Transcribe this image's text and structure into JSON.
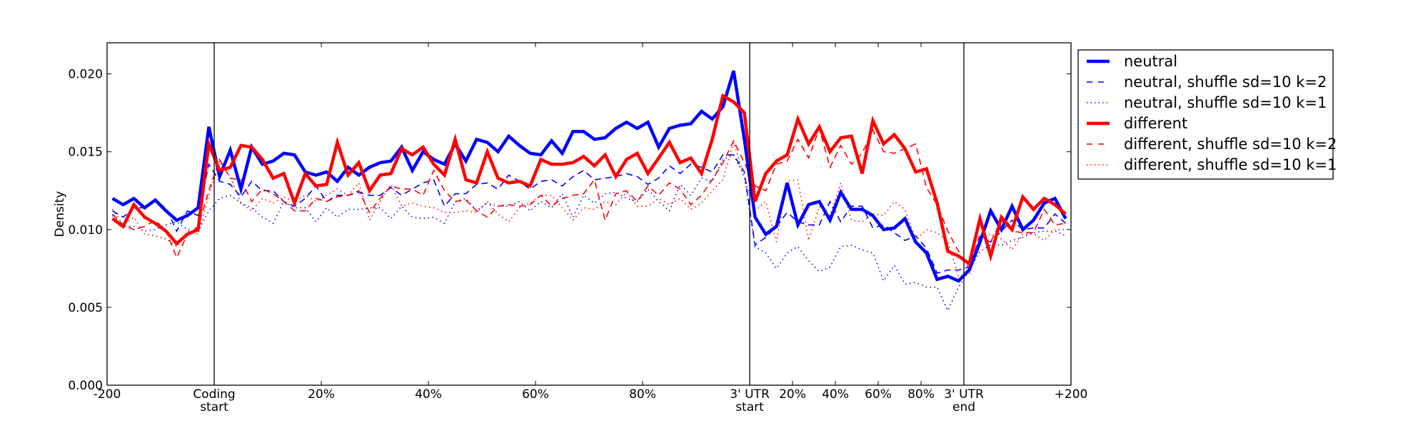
{
  "chart_data": {
    "type": "line",
    "title": "",
    "xlabel": "",
    "ylabel": "Density",
    "ylim": [
      0,
      0.022
    ],
    "xlim": [
      0,
      90
    ],
    "n_bins": 90,
    "x_note": "bin index; segments: upstream -200..0 (bins 0-10), coding 0-100% (10-60), 3' UTR 0-100% (60-80), downstream 0..+200 (80-90)",
    "grid": false,
    "legend_position": "outside-right-top",
    "yticks": [
      {
        "value": 0.0,
        "label": "0.000"
      },
      {
        "value": 0.005,
        "label": "0.005"
      },
      {
        "value": 0.01,
        "label": "0.010"
      },
      {
        "value": 0.015,
        "label": "0.015"
      },
      {
        "value": 0.02,
        "label": "0.020"
      }
    ],
    "xticks": [
      {
        "value": 0,
        "label": [
          "-200"
        ]
      },
      {
        "value": 10,
        "label": [
          "Coding",
          "start"
        ]
      },
      {
        "value": 20,
        "label": [
          "20%"
        ]
      },
      {
        "value": 30,
        "label": [
          "40%"
        ]
      },
      {
        "value": 40,
        "label": [
          "60%"
        ]
      },
      {
        "value": 50,
        "label": [
          "80%"
        ]
      },
      {
        "value": 60,
        "label": [
          "3' UTR",
          "start"
        ]
      },
      {
        "value": 64,
        "label": [
          "20%"
        ]
      },
      {
        "value": 68,
        "label": [
          "40%"
        ]
      },
      {
        "value": 72,
        "label": [
          "60%"
        ]
      },
      {
        "value": 76,
        "label": [
          "80%"
        ]
      },
      {
        "value": 80,
        "label": [
          "3' UTR",
          "end"
        ]
      },
      {
        "value": 90,
        "label": [
          "+200"
        ]
      }
    ],
    "vlines": [
      10,
      60,
      80
    ],
    "series": [
      {
        "name": "neutral",
        "color": "#0000ff",
        "style": "solid",
        "values": [
          0.012,
          0.0116,
          0.012,
          0.0114,
          0.0119,
          0.0112,
          0.0106,
          0.0109,
          0.0114,
          0.0166,
          0.0134,
          0.0151,
          0.0126,
          0.0153,
          0.0142,
          0.0144,
          0.0149,
          0.0148,
          0.0137,
          0.0135,
          0.0137,
          0.0131,
          0.014,
          0.0135,
          0.014,
          0.0143,
          0.0144,
          0.0153,
          0.0138,
          0.015,
          0.0145,
          0.0142,
          0.0155,
          0.0144,
          0.0158,
          0.0156,
          0.015,
          0.016,
          0.0154,
          0.0149,
          0.0148,
          0.0157,
          0.0149,
          0.0163,
          0.0163,
          0.0158,
          0.0159,
          0.0165,
          0.0169,
          0.0165,
          0.0169,
          0.0153,
          0.0165,
          0.0167,
          0.0168,
          0.0176,
          0.0171,
          0.0179,
          0.0202,
          0.0158,
          0.0108,
          0.0097,
          0.0102,
          0.013,
          0.0103,
          0.0116,
          0.0118,
          0.0106,
          0.0124,
          0.0113,
          0.0113,
          0.0109,
          0.01,
          0.0101,
          0.0107,
          0.0092,
          0.0085,
          0.0068,
          0.007,
          0.0067,
          0.0074,
          0.0092,
          0.0112,
          0.01,
          0.0115,
          0.01,
          0.0106,
          0.0117,
          0.012,
          0.0107
        ]
      },
      {
        "name": "neutral, shuffle sd=10 k=2",
        "color": "#0000ff",
        "style": "dashed",
        "values": [
          0.0112,
          0.0108,
          0.0114,
          0.0114,
          0.0118,
          0.0114,
          0.0099,
          0.0112,
          0.0109,
          0.0142,
          0.0131,
          0.0129,
          0.0121,
          0.0131,
          0.0125,
          0.0125,
          0.0118,
          0.0115,
          0.012,
          0.0128,
          0.0118,
          0.0122,
          0.0122,
          0.0124,
          0.0122,
          0.0122,
          0.0127,
          0.0122,
          0.0126,
          0.013,
          0.0132,
          0.0115,
          0.0123,
          0.0123,
          0.0129,
          0.013,
          0.0126,
          0.0135,
          0.0131,
          0.0126,
          0.0131,
          0.0132,
          0.0128,
          0.0134,
          0.0138,
          0.0132,
          0.0133,
          0.0134,
          0.0136,
          0.0134,
          0.0129,
          0.0133,
          0.0141,
          0.0136,
          0.0142,
          0.014,
          0.0137,
          0.0148,
          0.0148,
          0.0137,
          0.009,
          0.0095,
          0.0102,
          0.0111,
          0.0105,
          0.0103,
          0.0103,
          0.0118,
          0.0105,
          0.0115,
          0.0115,
          0.0101,
          0.0103,
          0.0098,
          0.0093,
          0.0096,
          0.0088,
          0.0072,
          0.0074,
          0.0074,
          0.0076,
          0.0095,
          0.0092,
          0.0099,
          0.0106,
          0.01,
          0.0101,
          0.0101,
          0.011,
          0.0104
        ]
      },
      {
        "name": "neutral, shuffle sd=10 k=1",
        "color": "#0000ff",
        "style": "dotted",
        "values": [
          0.0109,
          0.0102,
          0.0102,
          0.0099,
          0.01,
          0.0103,
          0.0105,
          0.01,
          0.0099,
          0.0112,
          0.012,
          0.0122,
          0.0117,
          0.0114,
          0.0108,
          0.0104,
          0.0118,
          0.0114,
          0.0114,
          0.0105,
          0.0114,
          0.0108,
          0.0113,
          0.0113,
          0.0114,
          0.0114,
          0.0107,
          0.0115,
          0.0108,
          0.0107,
          0.0108,
          0.0104,
          0.0118,
          0.012,
          0.0112,
          0.0117,
          0.0115,
          0.0115,
          0.0118,
          0.0112,
          0.0118,
          0.0114,
          0.0123,
          0.0108,
          0.0122,
          0.0117,
          0.0123,
          0.0124,
          0.012,
          0.0118,
          0.0126,
          0.0118,
          0.0112,
          0.0129,
          0.0122,
          0.0133,
          0.0131,
          0.0145,
          0.0148,
          0.0134,
          0.0089,
          0.0085,
          0.0075,
          0.0085,
          0.0089,
          0.008,
          0.0073,
          0.0076,
          0.0089,
          0.009,
          0.0087,
          0.0085,
          0.0067,
          0.0077,
          0.0065,
          0.0066,
          0.0063,
          0.0063,
          0.0048,
          0.0063,
          0.0074,
          0.0086,
          0.009,
          0.009,
          0.0093,
          0.0095,
          0.0098,
          0.0099,
          0.0099,
          0.0096
        ]
      },
      {
        "name": "different",
        "color": "#ff0000",
        "style": "solid",
        "values": [
          0.0107,
          0.0102,
          0.0116,
          0.0108,
          0.0104,
          0.0099,
          0.0091,
          0.0097,
          0.01,
          0.0155,
          0.0138,
          0.014,
          0.0154,
          0.0153,
          0.0145,
          0.0133,
          0.0136,
          0.0117,
          0.0136,
          0.0128,
          0.0129,
          0.0156,
          0.0135,
          0.0143,
          0.0125,
          0.0135,
          0.0136,
          0.0152,
          0.0148,
          0.0153,
          0.0142,
          0.0135,
          0.0158,
          0.0132,
          0.013,
          0.015,
          0.0133,
          0.013,
          0.0131,
          0.0128,
          0.0145,
          0.0142,
          0.0142,
          0.0143,
          0.0147,
          0.0141,
          0.0148,
          0.0134,
          0.0145,
          0.0149,
          0.0136,
          0.0146,
          0.0156,
          0.0143,
          0.0146,
          0.0136,
          0.0158,
          0.0186,
          0.0182,
          0.0175,
          0.0118,
          0.0136,
          0.0144,
          0.0148,
          0.0171,
          0.0155,
          0.0166,
          0.015,
          0.0159,
          0.016,
          0.0136,
          0.017,
          0.0155,
          0.0161,
          0.0152,
          0.0137,
          0.0139,
          0.0117,
          0.0086,
          0.0083,
          0.0078,
          0.0107,
          0.0083,
          0.0108,
          0.01,
          0.0121,
          0.0113,
          0.012,
          0.0116,
          0.011
        ]
      },
      {
        "name": "different, shuffle sd=10 k=2",
        "color": "#ff0000",
        "style": "dashed",
        "values": [
          0.011,
          0.0103,
          0.01,
          0.0102,
          0.0106,
          0.0099,
          0.0082,
          0.0097,
          0.0102,
          0.0125,
          0.0145,
          0.0133,
          0.0132,
          0.0118,
          0.0126,
          0.0123,
          0.0118,
          0.0112,
          0.0112,
          0.012,
          0.0118,
          0.0121,
          0.0122,
          0.0125,
          0.0111,
          0.012,
          0.0128,
          0.0126,
          0.0126,
          0.0122,
          0.0138,
          0.0125,
          0.0118,
          0.0119,
          0.0112,
          0.0108,
          0.0115,
          0.0116,
          0.0115,
          0.0116,
          0.0122,
          0.0115,
          0.012,
          0.0122,
          0.0123,
          0.0132,
          0.0106,
          0.0123,
          0.0125,
          0.0118,
          0.0128,
          0.0122,
          0.013,
          0.0126,
          0.0116,
          0.0122,
          0.0132,
          0.0143,
          0.0157,
          0.0143,
          0.0128,
          0.0125,
          0.0142,
          0.0144,
          0.0158,
          0.0146,
          0.0165,
          0.014,
          0.0154,
          0.0142,
          0.0149,
          0.0164,
          0.015,
          0.0149,
          0.0152,
          0.0155,
          0.0127,
          0.0116,
          0.0099,
          0.0086,
          0.0075,
          0.0097,
          0.0092,
          0.0106,
          0.0099,
          0.0098,
          0.0098,
          0.0113,
          0.0103,
          0.0104
        ]
      },
      {
        "name": "different, shuffle sd=10 k=1",
        "color": "#ff0000",
        "style": "dotted",
        "values": [
          0.0113,
          0.0103,
          0.0108,
          0.0097,
          0.0096,
          0.0094,
          0.0089,
          0.0099,
          0.0097,
          0.0122,
          0.0144,
          0.0134,
          0.0117,
          0.0112,
          0.012,
          0.0117,
          0.0121,
          0.0118,
          0.0122,
          0.0118,
          0.0122,
          0.0126,
          0.0122,
          0.013,
          0.0106,
          0.0118,
          0.0129,
          0.0115,
          0.0117,
          0.0115,
          0.0114,
          0.0111,
          0.0111,
          0.0112,
          0.0111,
          0.0118,
          0.011,
          0.0105,
          0.0114,
          0.0117,
          0.0122,
          0.0122,
          0.0114,
          0.0106,
          0.0114,
          0.0113,
          0.0118,
          0.0116,
          0.0124,
          0.0115,
          0.0115,
          0.012,
          0.0116,
          0.012,
          0.0113,
          0.0117,
          0.0125,
          0.0132,
          0.0156,
          0.0134,
          0.0112,
          0.0118,
          0.0092,
          0.0131,
          0.0132,
          0.0093,
          0.0115,
          0.0109,
          0.013,
          0.0106,
          0.0105,
          0.011,
          0.0109,
          0.0118,
          0.0113,
          0.0093,
          0.01,
          0.0098,
          0.0092,
          0.007,
          0.0071,
          0.0095,
          0.0097,
          0.0094,
          0.0087,
          0.0097,
          0.0097,
          0.0093,
          0.01,
          0.01
        ]
      }
    ]
  }
}
